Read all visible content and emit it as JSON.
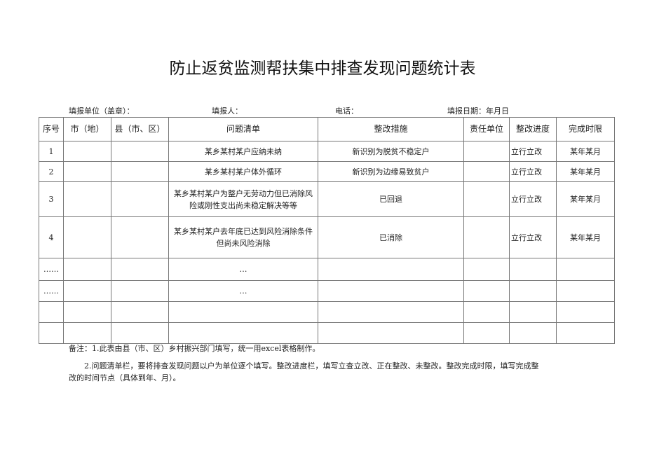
{
  "title": "防止返贫监测帮扶集中排查发现问题统计表",
  "meta": {
    "unit": "填报单位（盖章）：",
    "person": "填报人：",
    "phone": "电话：",
    "date": "填报日期：年月日"
  },
  "headers": [
    "序号",
    "市（地）",
    "县（市、区）",
    "问题清单",
    "整改措施",
    "责任单位",
    "整改进度",
    "完成时限"
  ],
  "rows": [
    [
      "1",
      "",
      "",
      "某乡某村某户应纳未纳",
      "新识别为脱贫不稳定户",
      "",
      "立行立改",
      "某年某月"
    ],
    [
      "2",
      "",
      "",
      "某乡某村某户体外循环",
      "新识别为边缘易致贫户",
      "",
      "立行立改",
      "某年某月"
    ],
    [
      "3",
      "",
      "",
      "某乡某村某户为整户无劳动力但已消除风险或刚性支出尚未稳定解决等等",
      "已回退",
      "",
      "立行立改",
      "某年某月"
    ],
    [
      "4",
      "",
      "",
      "某乡某村某户去年底已达到风险消除条件但尚未风险消除",
      "已消除",
      "",
      "立行立改",
      "某年某月"
    ],
    [
      "……",
      "",
      "",
      "…",
      "",
      "",
      "",
      ""
    ],
    [
      "……",
      "",
      "",
      "…",
      "",
      "",
      "",
      ""
    ],
    [
      "",
      "",
      "",
      "",
      "",
      "",
      "",
      ""
    ],
    [
      "",
      "",
      "",
      "",
      "",
      "",
      "",
      ""
    ]
  ],
  "notes": [
    "备注：1.此表由县（市、区）乡村振兴部门填写，统一用excel表格制作。",
    "2.问题清单栏，要将排查发现问题以户为单位逐个填写。整改进度栏，填写立查立改、正在整改、未整改。整改完成时限，填写完成整改的时间节点（具体到年、月）。"
  ]
}
